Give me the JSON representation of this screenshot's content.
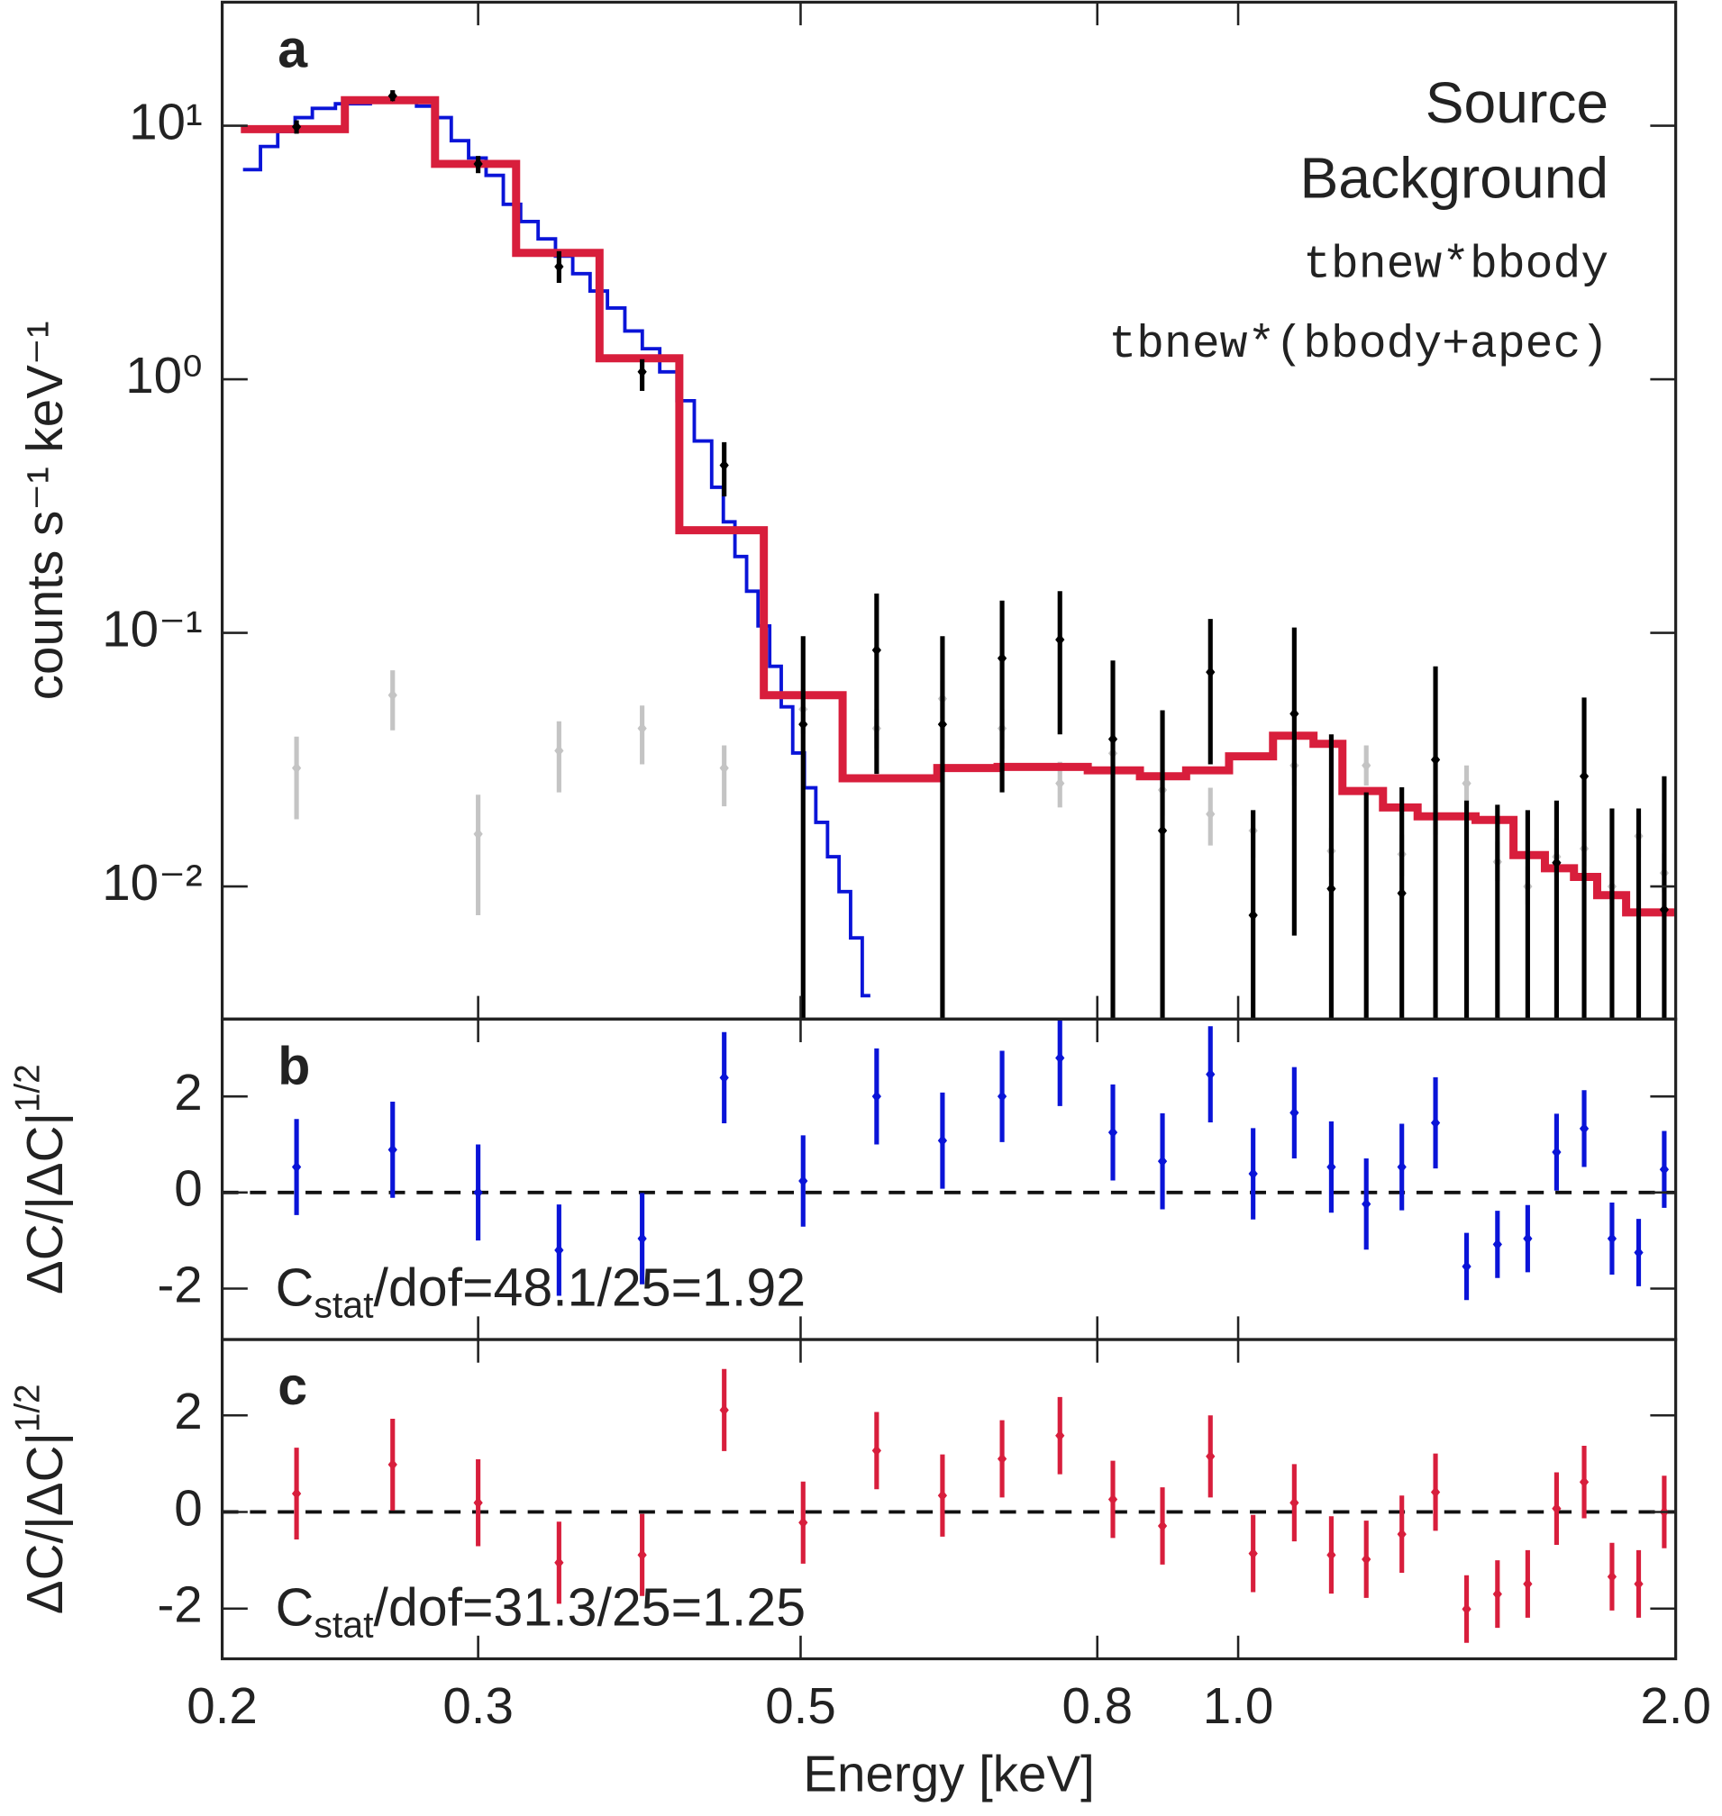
{
  "chart_data": [
    {
      "type": "spectrum",
      "panel_label": "a",
      "ylabel": "counts s⁻¹ keV⁻¹",
      "log_x": true,
      "log_y": true,
      "xlim": [
        0.2,
        2.0
      ],
      "ylim": [
        0.003,
        30.7
      ],
      "yticks": [
        {
          "value": 10,
          "label": "10¹"
        },
        {
          "value": 1,
          "label": "10⁰"
        },
        {
          "value": 0.1,
          "label": "10⁻¹"
        },
        {
          "value": 0.01,
          "label": "10⁻²"
        }
      ],
      "legend": "upper right",
      "points": [
        {
          "name": "Source",
          "color": "#000000",
          "x": [
            0.225,
            0.262,
            0.3,
            0.341,
            0.389,
            0.443,
            0.502,
            0.564,
            0.626,
            0.688,
            0.754,
            0.82,
            0.887,
            0.957,
            1.024,
            1.093,
            1.159,
            1.225,
            1.296,
            1.367,
            1.436,
            1.508,
            1.582,
            1.656,
            1.73,
            1.808,
            1.886,
            1.964
          ],
          "values": [
            9.9,
            13.1,
            7.07,
            2.78,
            1.07,
            0.458,
            0.0436,
            0.0855,
            0.0436,
            0.0794,
            0.094,
            0.0381,
            0.0166,
            0.07,
            0.0077,
            0.048,
            0.0098,
            0.0025,
            0.0094,
            0.0316,
            0.0025,
            0.0025,
            0.0025,
            0.0124,
            0.0272,
            0.0025,
            0.0025,
            0.0081
          ],
          "lower": [
            9.3,
            12.5,
            6.5,
            2.4,
            0.9,
            0.345,
            0.001,
            0.0278,
            0.001,
            0.0235,
            0.0398,
            0.001,
            0.001,
            0.0303,
            0.001,
            0.0064,
            0.001,
            0.001,
            0.001,
            0.001,
            0.001,
            0.001,
            0.001,
            0.001,
            0.001,
            0.001,
            0.001,
            0.001
          ],
          "upper": [
            10.5,
            13.8,
            7.6,
            3.2,
            1.2,
            0.565,
            0.097,
            0.143,
            0.097,
            0.134,
            0.146,
            0.0778,
            0.0495,
            0.1135,
            0.02,
            0.105,
            0.0398,
            0.0235,
            0.0246,
            0.0738,
            0.0218,
            0.021,
            0.02,
            0.0218,
            0.0556,
            0.0203,
            0.0203,
            0.0272
          ]
        },
        {
          "name": "Background",
          "color": "#c4c4c4",
          "x": [
            0.225,
            0.262,
            0.3,
            0.341,
            0.389,
            0.443,
            0.502,
            0.564,
            0.626,
            0.688,
            0.754,
            0.82,
            0.887,
            0.957,
            1.024,
            1.093,
            1.159,
            1.225,
            1.296,
            1.367,
            1.436,
            1.508,
            1.582,
            1.656,
            1.73,
            1.808,
            1.886,
            1.964
          ],
          "values": [
            0.0293,
            0.0568,
            0.0161,
            0.0343,
            0.042,
            0.0293,
            0.05,
            0.042,
            0.055,
            0.042,
            0.0255,
            0.0335,
            0.024,
            0.0193,
            0.0166,
            0.03,
            0.0138,
            0.03,
            0.0134,
            0.019,
            0.0255,
            0.0125,
            0.01,
            0.0131,
            0.0141,
            0.01,
            0.0158,
            0.0113
          ],
          "lower": [
            0.0184,
            0.0413,
            0.0077,
            0.0235,
            0.0303,
            0.0207,
            0.04,
            0.035,
            0.046,
            0.035,
            0.0205,
            0.028,
            0.019,
            0.0145,
            0.013,
            0.025,
            0.011,
            0.025,
            0.011,
            0.016,
            0.021,
            0.0105,
            0.0085,
            0.011,
            0.012,
            0.0085,
            0.013,
            0.0095
          ],
          "upper": [
            0.039,
            0.0712,
            0.023,
            0.0448,
            0.0517,
            0.036,
            0.06,
            0.05,
            0.065,
            0.05,
            0.031,
            0.04,
            0.029,
            0.0245,
            0.02,
            0.036,
            0.017,
            0.036,
            0.016,
            0.023,
            0.03,
            0.015,
            0.012,
            0.0155,
            0.0165,
            0.012,
            0.019,
            0.0135
          ]
        }
      ],
      "models": [
        {
          "name": "tbnew*bbody",
          "color": "#0a14d8",
          "width": 3,
          "bins": [
            0.2067,
            0.2125,
            0.2184,
            0.2245,
            0.2307,
            0.2393,
            0.2529,
            0.2721,
            0.2797,
            0.2875,
            0.2955,
            0.3038,
            0.3122,
            0.3209,
            0.3299,
            0.3391,
            0.3485,
            0.3582,
            0.3682,
            0.3785,
            0.3891,
            0.4,
            0.4111,
            0.4225,
            0.4343,
            0.4424,
            0.4506,
            0.459,
            0.4674,
            0.4761,
            0.4849,
            0.4938,
            0.503,
            0.5122,
            0.5218,
            0.5314,
            0.5412,
            0.5513,
            0.5584
          ],
          "values": [
            6.71,
            8.28,
            9.49,
            10.76,
            11.7,
            12.21,
            12.6,
            11.95,
            10.76,
            8.73,
            7.46,
            6.37,
            4.9,
            4.19,
            3.58,
            3.06,
            2.61,
            2.23,
            1.91,
            1.55,
            1.32,
            1.07,
            0.823,
            0.571,
            0.375,
            0.274,
            0.2,
            0.146,
            0.1065,
            0.0738,
            0.0511,
            0.0336,
            0.0245,
            0.0179,
            0.0131,
            0.00954,
            0.00627,
            0.00371
          ]
        },
        {
          "name": "tbnew*(bbody+apec)",
          "color": "#d81e3c",
          "width": 7,
          "bins": [
            0.206,
            0.2429,
            0.2802,
            0.3186,
            0.3636,
            0.4126,
            0.4717,
            0.5344,
            0.6209,
            0.6831,
            0.788,
            0.8559,
            0.9209,
            0.9857,
            1.0568,
            1.1268,
            1.1796,
            1.2579,
            1.3288,
            1.4566,
            1.5468,
            1.6257,
            1.7023,
            1.7661,
            1.8489,
            2.0
          ],
          "values": [
            9.69,
            12.6,
            7.07,
            3.15,
            1.21,
            0.254,
            0.0568,
            0.0267,
            0.0293,
            0.0296,
            0.0287,
            0.0272,
            0.0287,
            0.0326,
            0.0393,
            0.0365,
            0.0238,
            0.0205,
            0.0189,
            0.0183,
            0.0133,
            0.0118,
            0.0109,
            0.00924,
            0.0079
          ]
        }
      ]
    },
    {
      "type": "residual",
      "panel_label": "b",
      "ylabel": {
        "text": "ΔC/|ΔC|",
        "sup": "1/2"
      },
      "log_x": true,
      "xlim": [
        0.2,
        2.0
      ],
      "ylim": [
        -3.06,
        3.61
      ],
      "yticks": [
        2,
        0,
        -2
      ],
      "color": "#0a14d8",
      "x": [
        0.225,
        0.262,
        0.3,
        0.341,
        0.389,
        0.443,
        0.502,
        0.564,
        0.626,
        0.688,
        0.754,
        0.82,
        0.887,
        0.957,
        1.024,
        1.093,
        1.159,
        1.225,
        1.296,
        1.367,
        1.436,
        1.508,
        1.582,
        1.656,
        1.73,
        1.808,
        1.886,
        1.964
      ],
      "values": [
        0.53,
        0.89,
        0.0,
        -1.2,
        -0.96,
        2.39,
        0.24,
        2.0,
        1.08,
        2.0,
        2.8,
        1.25,
        0.65,
        2.46,
        0.39,
        1.66,
        0.53,
        -0.24,
        0.53,
        1.45,
        -1.54,
        -1.08,
        -0.96,
        0.84,
        1.33,
        -0.96,
        -1.25,
        0.48
      ],
      "errors": [
        1.0,
        1.0,
        1.0,
        0.95,
        0.95,
        0.95,
        0.95,
        1.0,
        1.0,
        0.95,
        1.0,
        1.0,
        1.0,
        1.0,
        0.95,
        0.95,
        0.95,
        0.95,
        0.9,
        0.95,
        0.7,
        0.7,
        0.7,
        0.8,
        0.8,
        0.75,
        0.7,
        0.8
      ],
      "annotation": {
        "base": "C",
        "sub": "stat",
        "text": "/dof=48.1/25=1.92"
      }
    },
    {
      "type": "residual",
      "panel_label": "c",
      "ylabel": {
        "text": "ΔC/|ΔC|",
        "sup": "1/2"
      },
      "log_x": true,
      "xlim": [
        0.2,
        2.0
      ],
      "ylim": [
        -3.04,
        3.57
      ],
      "yticks": [
        2,
        0,
        -2
      ],
      "color": "#d81e3c",
      "xlabel": "Energy [keV]",
      "xticks": [
        0.2,
        0.3,
        0.5,
        0.8,
        {
          "value": 1,
          "label": "1.0"
        },
        {
          "value": 2,
          "label": "2.0"
        }
      ],
      "x": [
        0.225,
        0.262,
        0.3,
        0.341,
        0.389,
        0.443,
        0.502,
        0.564,
        0.626,
        0.688,
        0.754,
        0.82,
        0.887,
        0.957,
        1.024,
        1.093,
        1.159,
        1.225,
        1.296,
        1.367,
        1.436,
        1.508,
        1.582,
        1.656,
        1.73,
        1.808,
        1.886,
        1.964
      ],
      "values": [
        0.38,
        0.98,
        0.19,
        -1.05,
        -0.89,
        2.11,
        -0.22,
        1.27,
        0.34,
        1.1,
        1.58,
        0.26,
        -0.29,
        1.15,
        -0.86,
        0.19,
        -0.89,
        -0.98,
        -0.46,
        0.41,
        -2.01,
        -1.7,
        -1.49,
        0.07,
        0.62,
        -1.34,
        -1.49,
        0.0
      ],
      "errors": [
        0.95,
        0.95,
        0.9,
        0.85,
        0.85,
        0.85,
        0.85,
        0.8,
        0.85,
        0.8,
        0.8,
        0.8,
        0.8,
        0.85,
        0.8,
        0.8,
        0.8,
        0.8,
        0.8,
        0.8,
        0.7,
        0.7,
        0.7,
        0.75,
        0.75,
        0.7,
        0.7,
        0.75
      ],
      "annotation": {
        "base": "C",
        "sub": "stat",
        "text": "/dof=31.3/25=1.25"
      }
    }
  ]
}
